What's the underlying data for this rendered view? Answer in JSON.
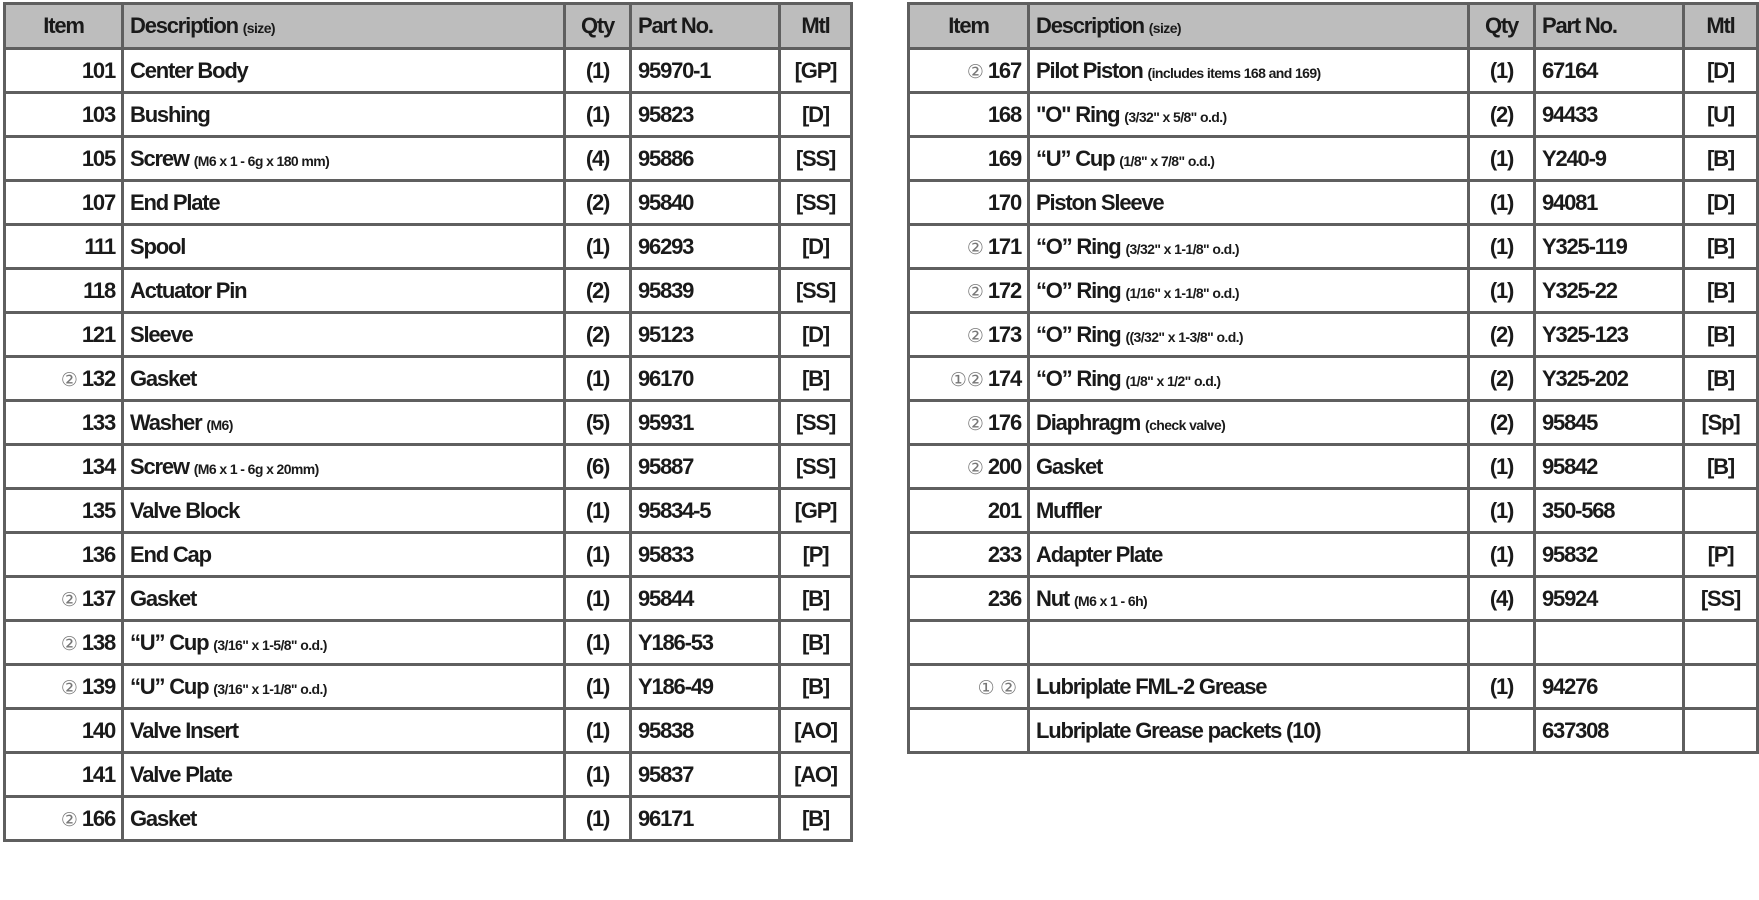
{
  "headers": {
    "item": "Item",
    "description": "Description",
    "size": "(size)",
    "qty": "Qty",
    "part": "Part No.",
    "mtl": "Mtl"
  },
  "left_rows": [
    {
      "mark": "",
      "item": "101",
      "desc": "Center Body",
      "size": "",
      "qty": "(1)",
      "part": "95970-1",
      "mtl": "[GP]"
    },
    {
      "mark": "",
      "item": "103",
      "desc": "Bushing",
      "size": "",
      "qty": "(1)",
      "part": "95823",
      "mtl": "[D]"
    },
    {
      "mark": "",
      "item": "105",
      "desc": "Screw",
      "size": "(M6 x 1 - 6g x 180 mm)",
      "qty": "(4)",
      "part": "95886",
      "mtl": "[SS]"
    },
    {
      "mark": "",
      "item": "107",
      "desc": "End Plate",
      "size": "",
      "qty": "(2)",
      "part": "95840",
      "mtl": "[SS]"
    },
    {
      "mark": "",
      "item": "111",
      "desc": "Spool",
      "size": "",
      "qty": "(1)",
      "part": "96293",
      "mtl": "[D]"
    },
    {
      "mark": "",
      "item": "118",
      "desc": "Actuator Pin",
      "size": "",
      "qty": "(2)",
      "part": "95839",
      "mtl": "[SS]"
    },
    {
      "mark": "",
      "item": "121",
      "desc": "Sleeve",
      "size": "",
      "qty": "(2)",
      "part": "95123",
      "mtl": "[D]"
    },
    {
      "mark": "②",
      "item": "132",
      "desc": "Gasket",
      "size": "",
      "qty": "(1)",
      "part": "96170",
      "mtl": "[B]"
    },
    {
      "mark": "",
      "item": "133",
      "desc": "Washer",
      "size": "(M6)",
      "qty": "(5)",
      "part": "95931",
      "mtl": "[SS]"
    },
    {
      "mark": "",
      "item": "134",
      "desc": "Screw",
      "size": "(M6 x 1 - 6g x 20mm)",
      "qty": "(6)",
      "part": "95887",
      "mtl": "[SS]"
    },
    {
      "mark": "",
      "item": "135",
      "desc": "Valve Block",
      "size": "",
      "qty": "(1)",
      "part": "95834-5",
      "mtl": "[GP]"
    },
    {
      "mark": "",
      "item": "136",
      "desc": "End Cap",
      "size": "",
      "qty": "(1)",
      "part": "95833",
      "mtl": "[P]"
    },
    {
      "mark": "②",
      "item": "137",
      "desc": "Gasket",
      "size": "",
      "qty": "(1)",
      "part": "95844",
      "mtl": "[B]"
    },
    {
      "mark": "②",
      "item": "138",
      "desc": "“U” Cup",
      "size": "(3/16\" x 1-5/8\" o.d.)",
      "qty": "(1)",
      "part": "Y186-53",
      "mtl": "[B]"
    },
    {
      "mark": "②",
      "item": "139",
      "desc": " “U” Cup",
      "size": "(3/16\" x 1-1/8\" o.d.)",
      "qty": "(1)",
      "part": "Y186-49",
      "mtl": "[B]"
    },
    {
      "mark": "",
      "item": "140",
      "desc": "Valve Insert",
      "size": "",
      "qty": "(1)",
      "part": "95838",
      "mtl": "[AO]"
    },
    {
      "mark": "",
      "item": "141",
      "desc": "Valve Plate",
      "size": "",
      "qty": "(1)",
      "part": "95837",
      "mtl": "[AO]"
    },
    {
      "mark": "②",
      "item": "166",
      "desc": "Gasket",
      "size": "",
      "qty": "(1)",
      "part": "96171",
      "mtl": "[B]"
    }
  ],
  "right_rows": [
    {
      "mark": "②",
      "item": "167",
      "desc": "Pilot Piston",
      "size": "(includes items 168 and 169)",
      "qty": "(1)",
      "part": "67164",
      "mtl": "[D]"
    },
    {
      "mark": "",
      "item": "168",
      "desc": "\"O\" Ring",
      "size": "(3/32\" x 5/8\" o.d.)",
      "qty": "(2)",
      "part": "94433",
      "mtl": "[U]"
    },
    {
      "mark": "",
      "item": "169",
      "desc": "“U” Cup",
      "size": "(1/8\" x 7/8\" o.d.)",
      "qty": "(1)",
      "part": "Y240-9",
      "mtl": "[B]"
    },
    {
      "mark": "",
      "item": "170",
      "desc": "Piston Sleeve",
      "size": "",
      "qty": "(1)",
      "part": "94081",
      "mtl": "[D]"
    },
    {
      "mark": "②",
      "item": "171",
      "desc": "“O” Ring",
      "size": "(3/32\" x 1-1/8\" o.d.)",
      "qty": "(1)",
      "part": "Y325-119",
      "mtl": "[B]"
    },
    {
      "mark": "②",
      "item": "172",
      "desc": "“O” Ring",
      "size": "(1/16\" x 1-1/8\" o.d.)",
      "qty": "(1)",
      "part": "Y325-22",
      "mtl": "[B]"
    },
    {
      "mark": "②",
      "item": "173",
      "desc": "“O” Ring",
      "size": "((3/32\" x 1-3/8\" o.d.)",
      "qty": "(2)",
      "part": "Y325-123",
      "mtl": "[B]"
    },
    {
      "mark": "①②",
      "item": "174",
      "desc": "“O” Ring",
      "size": "(1/8\" x 1/2\" o.d.)",
      "qty": "(2)",
      "part": "Y325-202",
      "mtl": "[B]"
    },
    {
      "mark": "②",
      "item": "176",
      "desc": "Diaphragm",
      "size": "(check valve)",
      "qty": "(2)",
      "part": "95845",
      "mtl": "[Sp]"
    },
    {
      "mark": "②",
      "item": "200",
      "desc": "Gasket",
      "size": "",
      "qty": "(1)",
      "part": "95842",
      "mtl": "[B]"
    },
    {
      "mark": "",
      "item": "201",
      "desc": "Muffler",
      "size": "",
      "qty": "(1)",
      "part": "350-568",
      "mtl": ""
    },
    {
      "mark": "",
      "item": "233",
      "desc": "Adapter Plate",
      "size": "",
      "qty": "(1)",
      "part": "95832",
      "mtl": "[P]"
    },
    {
      "mark": "",
      "item": "236",
      "desc": "Nut",
      "size": "(M6 x 1 - 6h)",
      "qty": "(4)",
      "part": "95924",
      "mtl": "[SS]"
    },
    {
      "mark": "",
      "item": "",
      "desc": "",
      "size": "",
      "qty": "",
      "part": "",
      "mtl": ""
    },
    {
      "mark": "① ②",
      "item": "",
      "desc": "Lubriplate FML-2 Grease",
      "size": "",
      "qty": "(1)",
      "part": "94276",
      "mtl": ""
    },
    {
      "mark": "",
      "item": "",
      "desc": "Lubriplate Grease packets (10)",
      "size": "",
      "qty": "",
      "part": "637308",
      "mtl": ""
    }
  ]
}
